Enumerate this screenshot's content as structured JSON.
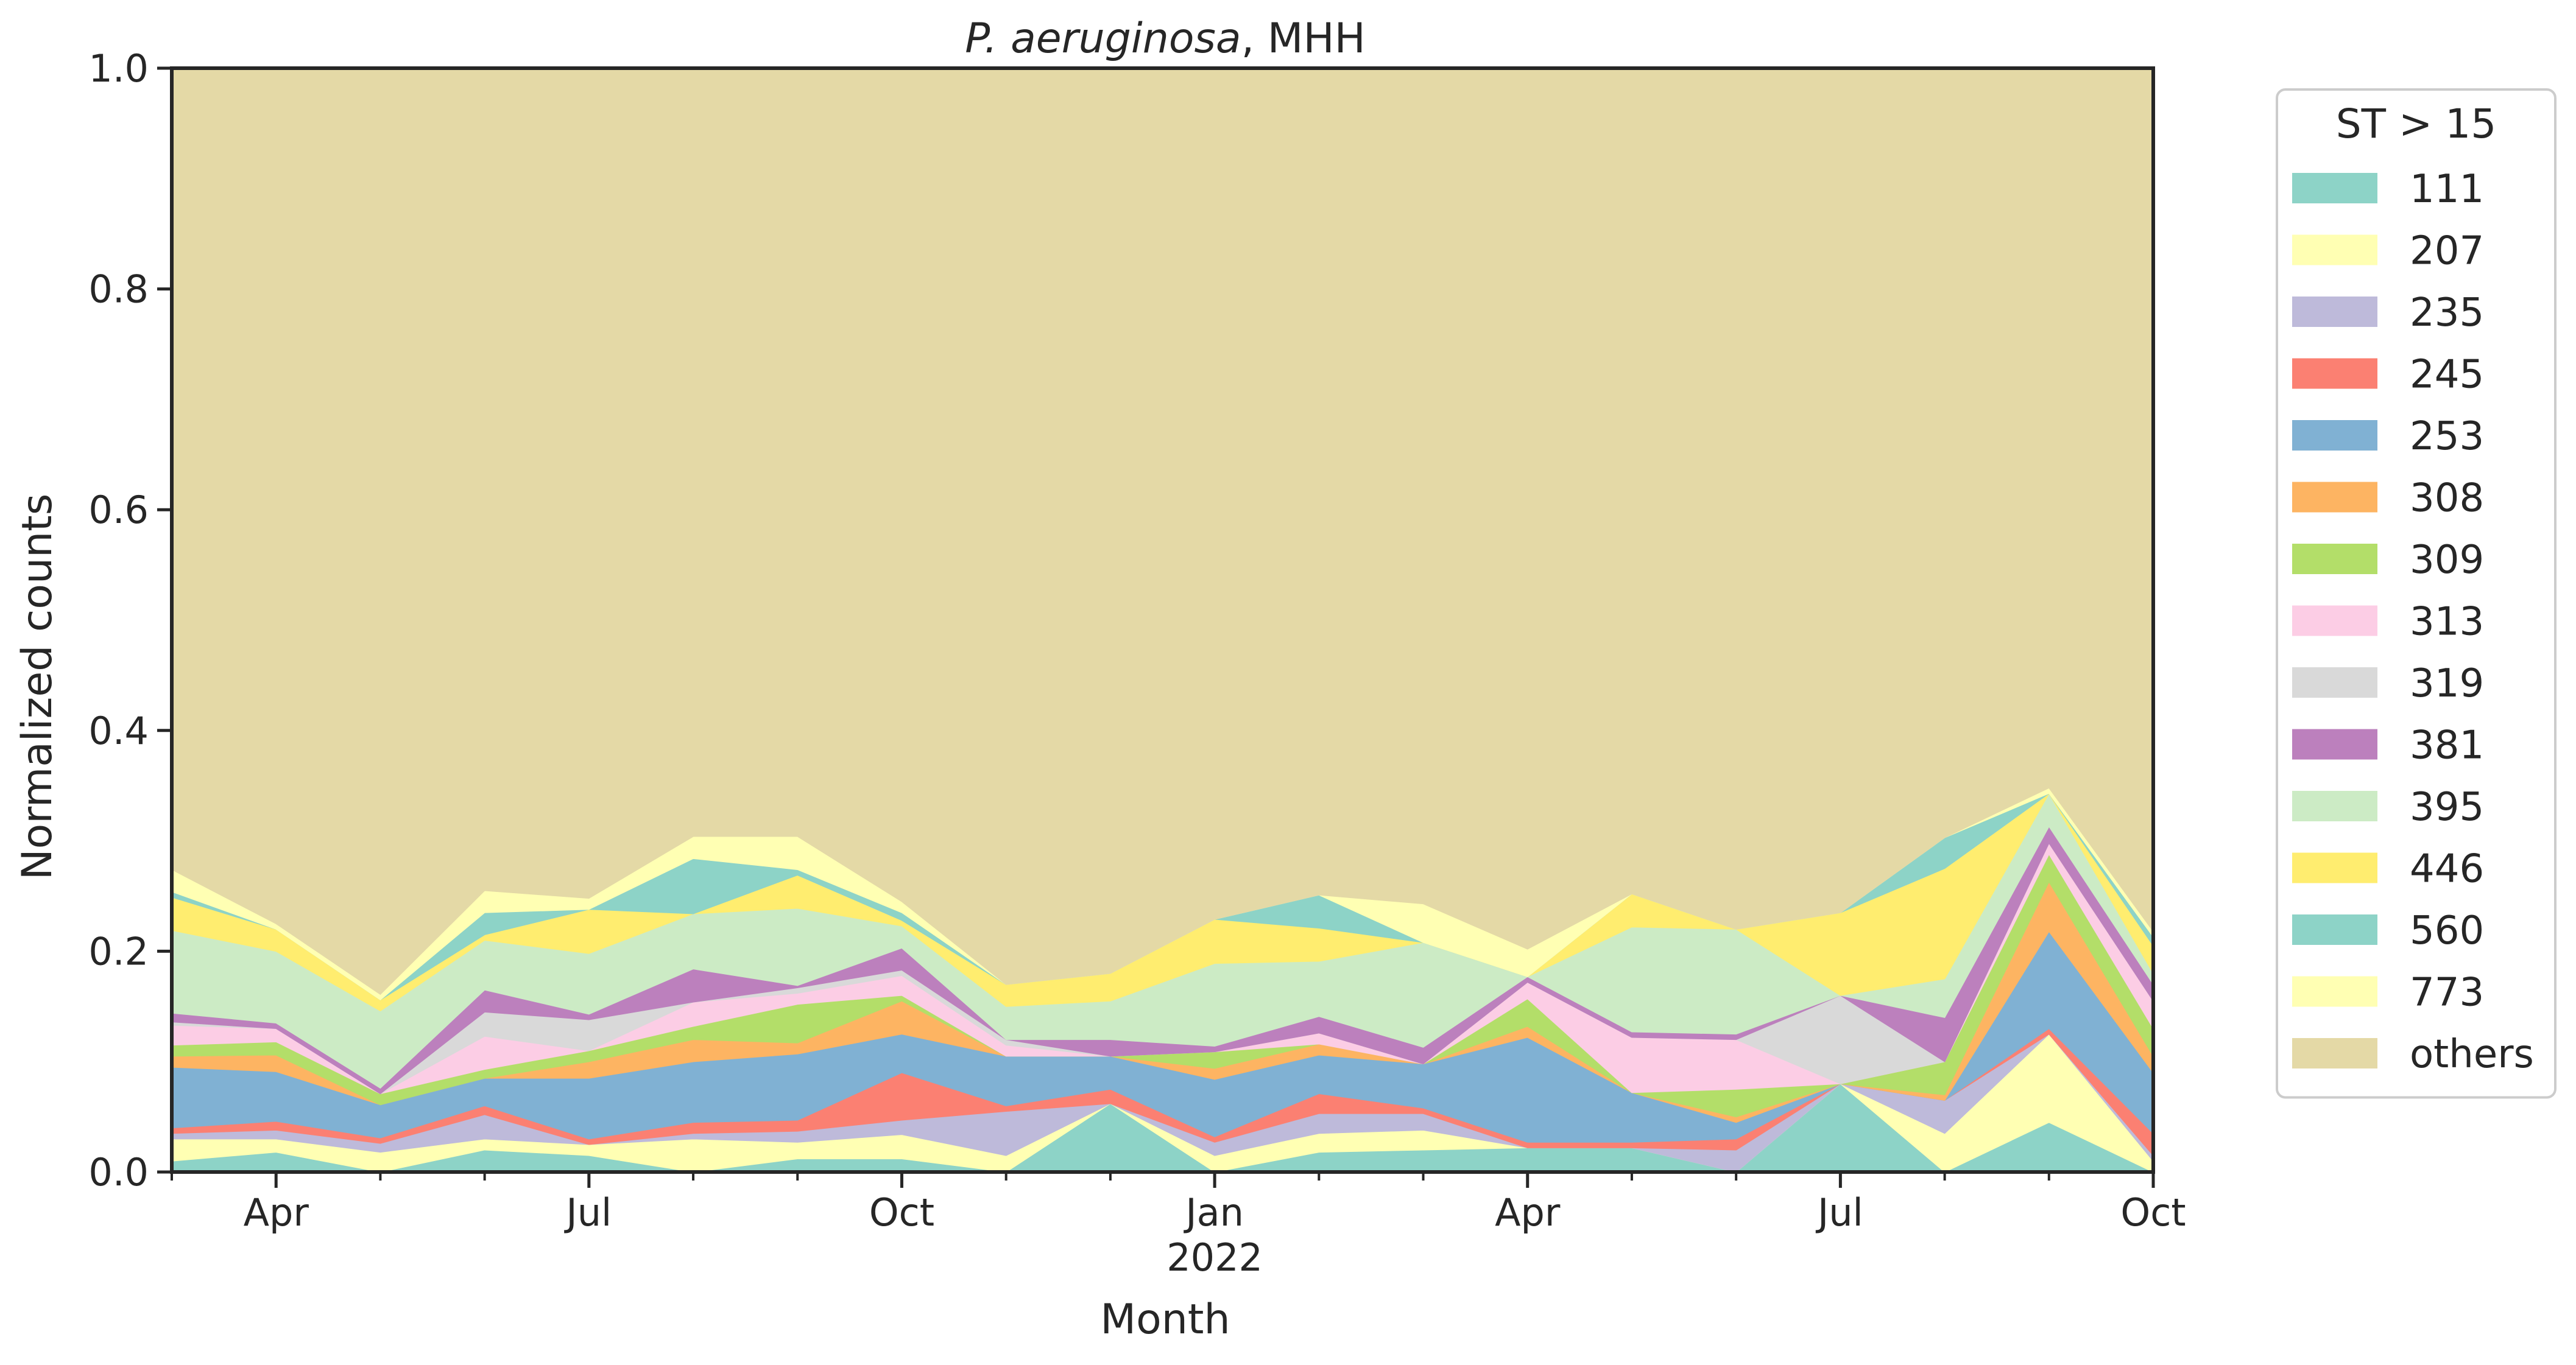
{
  "chart_data": {
    "type": "area",
    "stacked": true,
    "normalized": true,
    "title": {
      "italic": "P. aeruginosa",
      "rest": ", MHH"
    },
    "xlabel": "Month",
    "ylabel": "Normalized counts",
    "ylim": [
      0,
      1
    ],
    "yticks": [
      "0.0",
      "0.2",
      "0.4",
      "0.6",
      "0.8",
      "1.0"
    ],
    "x": [
      "2021-03",
      "2021-04",
      "2021-05",
      "2021-06",
      "2021-07",
      "2021-08",
      "2021-09",
      "2021-10",
      "2021-11",
      "2021-12",
      "2022-01",
      "2022-02",
      "2022-03",
      "2022-04",
      "2022-05",
      "2022-06",
      "2022-07",
      "2022-08",
      "2022-09",
      "2022-10"
    ],
    "xticks": [
      {
        "month": "2021-04",
        "label": "Apr"
      },
      {
        "month": "2021-07",
        "label": "Jul"
      },
      {
        "month": "2021-10",
        "label": "Oct"
      },
      {
        "month": "2022-01",
        "label": "Jan",
        "sublabel": "2022"
      },
      {
        "month": "2022-04",
        "label": "Apr"
      },
      {
        "month": "2022-07",
        "label": "Jul"
      },
      {
        "month": "2022-10",
        "label": "Oct"
      }
    ],
    "grid": false,
    "legend": {
      "title": "ST > 15",
      "placement": "outside-right"
    },
    "series": [
      {
        "name": "111",
        "color": "#8dd3c7",
        "values": [
          0.01,
          0.018,
          0.0,
          0.02,
          0.015,
          0.0,
          0.012,
          0.012,
          0.0,
          0.062,
          0.0,
          0.018,
          0.02,
          0.022,
          0.022,
          0.0,
          0.08,
          0.0,
          0.045,
          0.0
        ]
      },
      {
        "name": "207",
        "color": "#ffffb3",
        "values": [
          0.02,
          0.012,
          0.018,
          0.01,
          0.01,
          0.03,
          0.015,
          0.022,
          0.015,
          0.0,
          0.015,
          0.017,
          0.018,
          0.0,
          0.0,
          0.0,
          0.0,
          0.035,
          0.08,
          0.01
        ]
      },
      {
        "name": "235",
        "color": "#bebada",
        "values": [
          0.005,
          0.008,
          0.008,
          0.022,
          0.0,
          0.005,
          0.01,
          0.013,
          0.04,
          0.0,
          0.012,
          0.018,
          0.015,
          0.0,
          0.0,
          0.02,
          0.0,
          0.03,
          0.0,
          0.005
        ]
      },
      {
        "name": "245",
        "color": "#fb8072",
        "values": [
          0.005,
          0.008,
          0.005,
          0.008,
          0.005,
          0.01,
          0.01,
          0.043,
          0.005,
          0.013,
          0.005,
          0.018,
          0.005,
          0.005,
          0.005,
          0.01,
          0.0,
          0.0,
          0.005,
          0.02
        ]
      },
      {
        "name": "253",
        "color": "#80b1d3",
        "values": [
          0.055,
          0.045,
          0.03,
          0.025,
          0.055,
          0.055,
          0.06,
          0.035,
          0.045,
          0.03,
          0.052,
          0.035,
          0.04,
          0.095,
          0.045,
          0.015,
          0.0,
          0.0,
          0.088,
          0.055
        ]
      },
      {
        "name": "308",
        "color": "#fdb462",
        "values": [
          0.01,
          0.015,
          0.0,
          0.0,
          0.015,
          0.02,
          0.01,
          0.03,
          0.0,
          0.0,
          0.01,
          0.01,
          0.0,
          0.01,
          0.0,
          0.005,
          0.0,
          0.005,
          0.045,
          0.015
        ]
      },
      {
        "name": "309",
        "color": "#b3de69",
        "values": [
          0.01,
          0.012,
          0.01,
          0.008,
          0.01,
          0.012,
          0.035,
          0.005,
          0.0,
          0.0,
          0.015,
          0.0,
          0.0,
          0.025,
          0.0,
          0.025,
          0.0,
          0.03,
          0.025,
          0.025
        ]
      },
      {
        "name": "313",
        "color": "#fccde5",
        "values": [
          0.018,
          0.012,
          0.0,
          0.03,
          0.0,
          0.022,
          0.01,
          0.018,
          0.01,
          0.0,
          0.0,
          0.01,
          0.0,
          0.015,
          0.05,
          0.045,
          0.0,
          0.0,
          0.01,
          0.025
        ]
      },
      {
        "name": "319",
        "color": "#d9d9d9",
        "values": [
          0.003,
          0.0,
          0.0,
          0.022,
          0.028,
          0.0,
          0.005,
          0.005,
          0.005,
          0.0,
          0.0,
          0.0,
          0.0,
          0.0,
          0.0,
          0.0,
          0.08,
          0.0,
          0.0,
          0.0
        ]
      },
      {
        "name": "381",
        "color": "#bc80bd",
        "values": [
          0.008,
          0.005,
          0.005,
          0.02,
          0.005,
          0.03,
          0.002,
          0.02,
          0.0,
          0.015,
          0.005,
          0.015,
          0.015,
          0.005,
          0.005,
          0.005,
          0.0,
          0.04,
          0.015,
          0.015
        ]
      },
      {
        "name": "395",
        "color": "#ccebc5",
        "values": [
          0.075,
          0.065,
          0.07,
          0.045,
          0.055,
          0.05,
          0.07,
          0.02,
          0.03,
          0.035,
          0.075,
          0.05,
          0.095,
          0.0,
          0.095,
          0.095,
          0.0,
          0.035,
          0.03,
          0.01
        ]
      },
      {
        "name": "446",
        "color": "#ffed6f",
        "values": [
          0.03,
          0.02,
          0.01,
          0.005,
          0.04,
          0.0,
          0.03,
          0.005,
          0.02,
          0.025,
          0.04,
          0.03,
          0.0,
          0.0,
          0.03,
          0.0,
          0.075,
          0.1,
          0.0,
          0.025
        ]
      },
      {
        "name": "560",
        "color": "#8dd3c7",
        "values": [
          0.005,
          0.0,
          0.0,
          0.02,
          0.0,
          0.05,
          0.005,
          0.007,
          0.0,
          0.0,
          0.0,
          0.03,
          0.0,
          0.0,
          0.0,
          0.0,
          0.0,
          0.028,
          0.0,
          0.008
        ]
      },
      {
        "name": "773",
        "color": "#ffffb3",
        "values": [
          0.02,
          0.005,
          0.005,
          0.02,
          0.01,
          0.02,
          0.03,
          0.01,
          0.0,
          0.0,
          0.0,
          0.0,
          0.035,
          0.025,
          0.0,
          0.0,
          0.0,
          0.0,
          0.005,
          0.005
        ]
      },
      {
        "name": "others",
        "color": "#e4d9a6",
        "values": [
          0.726,
          0.775,
          0.839,
          0.745,
          0.752,
          0.696,
          0.696,
          0.755,
          0.83,
          0.82,
          0.771,
          0.749,
          0.757,
          0.798,
          0.748,
          0.78,
          0.765,
          0.697,
          0.652,
          0.782
        ]
      }
    ]
  }
}
